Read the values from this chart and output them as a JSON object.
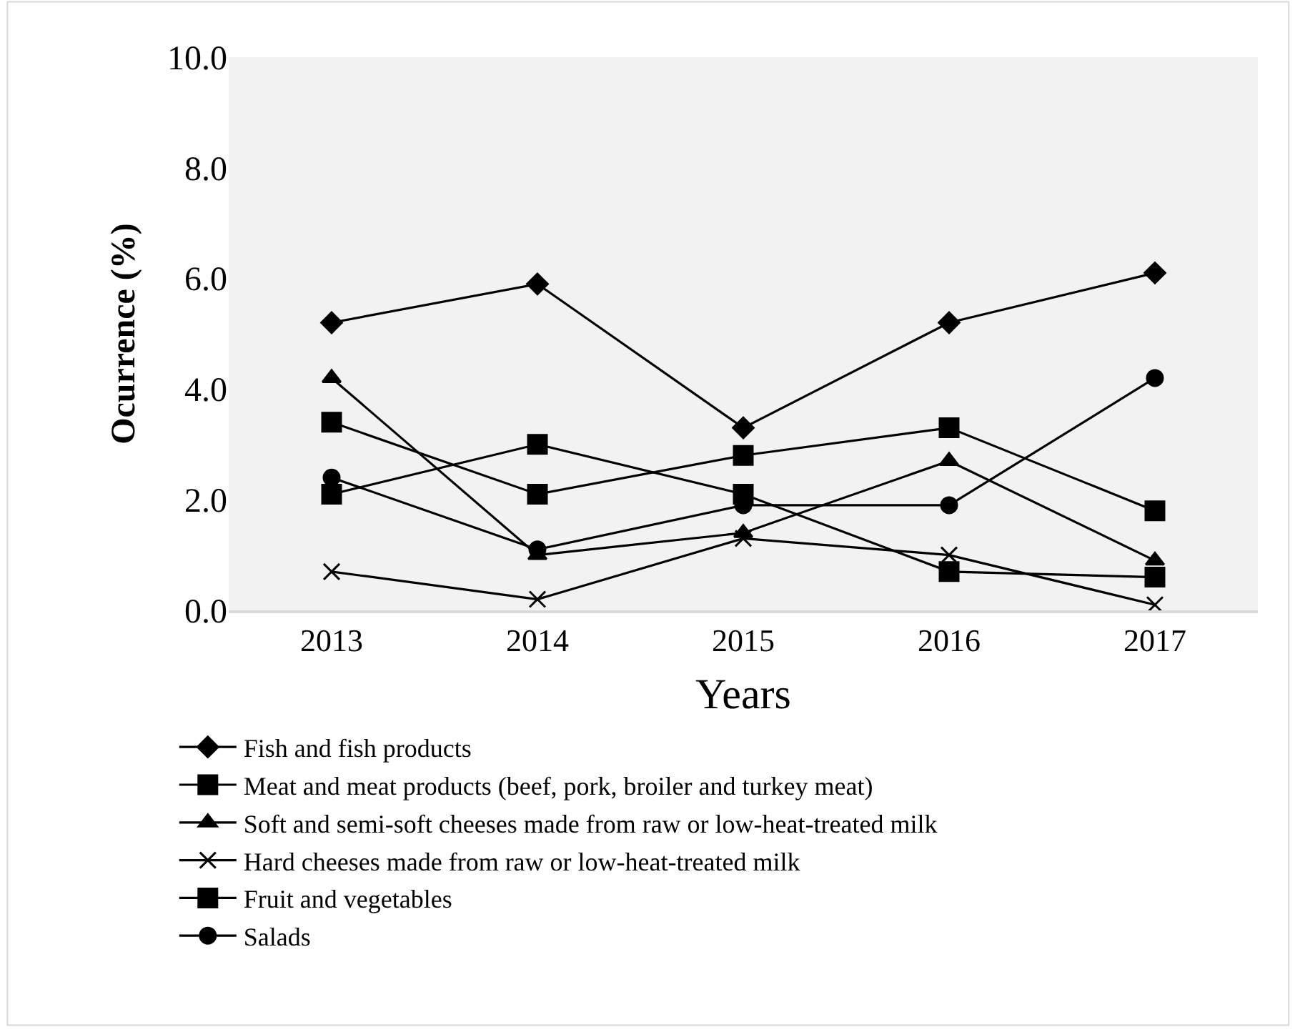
{
  "chart_data": {
    "type": "line",
    "xlabel": "Years",
    "ylabel": "Ocurrence (%)",
    "categories": [
      "2013",
      "2014",
      "2015",
      "2016",
      "2017"
    ],
    "ylim": [
      0,
      10
    ],
    "yticks": [
      {
        "value": 0,
        "label": "0.0"
      },
      {
        "value": 2,
        "label": "2.0"
      },
      {
        "value": 4,
        "label": "4.0"
      },
      {
        "value": 6,
        "label": "6.0"
      },
      {
        "value": 8,
        "label": "8.0"
      },
      {
        "value": 10,
        "label": "10.0"
      }
    ],
    "grid": false,
    "legend": "bottom",
    "line_style": "solid",
    "series": [
      {
        "name": "Fish and fish products",
        "color": "#000000",
        "marker": "diamond",
        "values": [
          5.2,
          5.9,
          3.3,
          5.2,
          6.1
        ]
      },
      {
        "name": "Meat and meat products (beef, pork, broiler and turkey meat)",
        "color": "#000000",
        "marker": "square",
        "values": [
          3.4,
          2.1,
          2.8,
          3.3,
          1.8
        ]
      },
      {
        "name": "Soft and semi-soft cheeses made from raw or low-heat-treated milk",
        "color": "#000000",
        "marker": "triangle",
        "values": [
          4.2,
          1.0,
          1.4,
          2.7,
          0.9
        ]
      },
      {
        "name": "Hard cheeses made from raw or low-heat-treated milk",
        "color": "#000000",
        "marker": "cross",
        "values": [
          0.7,
          0.2,
          1.3,
          1.0,
          0.1
        ]
      },
      {
        "name": "Fruit and vegetables",
        "color": "#000000",
        "marker": "square",
        "values": [
          2.1,
          3.0,
          2.1,
          0.7,
          0.6
        ]
      },
      {
        "name": "Salads",
        "color": "#000000",
        "marker": "circle",
        "values": [
          2.4,
          1.1,
          1.9,
          1.9,
          4.2
        ]
      }
    ]
  }
}
